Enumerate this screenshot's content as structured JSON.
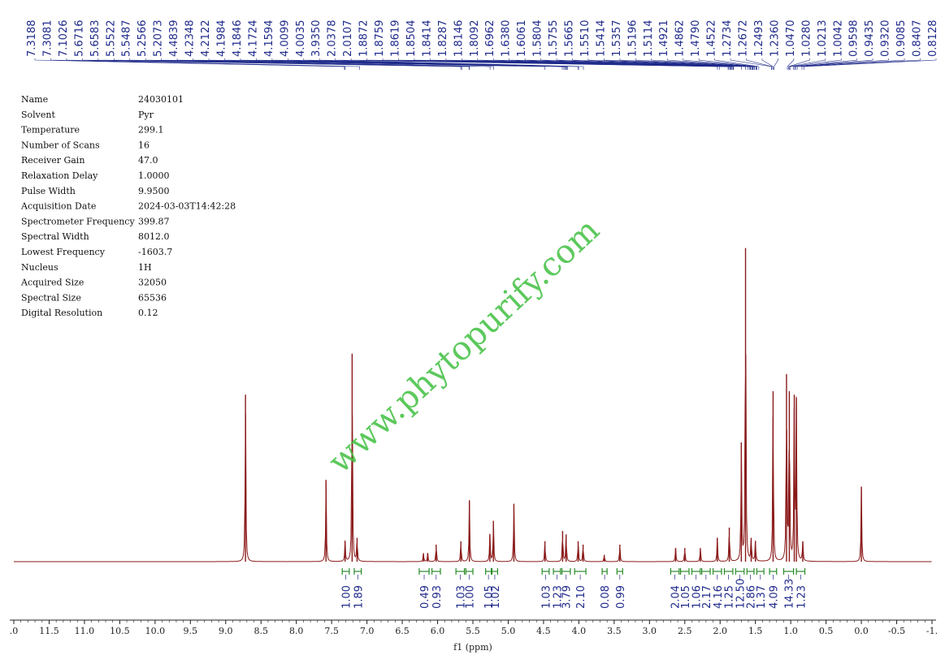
{
  "params": [
    {
      "label": "Name",
      "value": "24030101"
    },
    {
      "label": "Solvent",
      "value": "Pyr"
    },
    {
      "label": "Temperature",
      "value": "299.1"
    },
    {
      "label": "Number of Scans",
      "value": "16"
    },
    {
      "label": "Receiver Gain",
      "value": "47.0"
    },
    {
      "label": "Relaxation Delay",
      "value": "1.0000"
    },
    {
      "label": "Pulse Width",
      "value": "9.9500"
    },
    {
      "label": "Acquisition Date",
      "value": "2024-03-03T14:42:28"
    },
    {
      "label": "Spectrometer Frequency",
      "value": "399.87"
    },
    {
      "label": "Spectral Width",
      "value": "8012.0"
    },
    {
      "label": "Lowest Frequency",
      "value": "-1603.7"
    },
    {
      "label": "Nucleus",
      "value": "1H"
    },
    {
      "label": "Acquired Size",
      "value": "32050"
    },
    {
      "label": "Spectral Size",
      "value": "65536"
    },
    {
      "label": "Digital Resolution",
      "value": "0.12"
    }
  ],
  "watermark": "www.phytopurify.com",
  "colors": {
    "spectrum": "#8b1a1a",
    "peaks": "#1a1a9c",
    "labels": "#1f2a8a",
    "integral": "#2a8a2a",
    "watermark": "#3fbf3f"
  },
  "chart_data": {
    "type": "line",
    "xlabel": "f1 (ppm)",
    "xlim": [
      12.0,
      -1.0
    ],
    "x_reversed": true,
    "x_ticks": [
      ".0",
      "11.5",
      "11.0",
      "10.5",
      "10.0",
      "9.5",
      "9.0",
      "8.5",
      "8.0",
      "7.5",
      "7.0",
      "6.5",
      "6.0",
      "5.5",
      "5.0",
      "4.5",
      "4.0",
      "3.5",
      "3.0",
      "2.5",
      "2.0",
      "1.5",
      "1.0",
      "0.5",
      "0.0",
      "-0.5",
      "-1."
    ],
    "x_tick_values": [
      12.0,
      11.5,
      11.0,
      10.5,
      10.0,
      9.5,
      9.0,
      8.5,
      8.0,
      7.5,
      7.0,
      6.5,
      6.0,
      5.5,
      5.0,
      4.5,
      4.0,
      3.5,
      3.0,
      2.5,
      2.0,
      1.5,
      1.0,
      0.5,
      0.0,
      -0.5,
      -1.0
    ],
    "peak_labels": [
      "7.3188",
      "7.3081",
      "7.1026",
      "5.6716",
      "5.6583",
      "5.5522",
      "5.5487",
      "5.2566",
      "5.2073",
      "4.4839",
      "4.2348",
      "4.2122",
      "4.1984",
      "4.1846",
      "4.1724",
      "4.1594",
      "4.0099",
      "4.0035",
      "3.9350",
      "2.0378",
      "2.0107",
      "1.8872",
      "1.8759",
      "1.8619",
      "1.8504",
      "1.8414",
      "1.8287",
      "1.8146",
      "1.8092",
      "1.6962",
      "1.6380",
      "1.6061",
      "1.5804",
      "1.5755",
      "1.5665",
      "1.5510",
      "1.5414",
      "1.5357",
      "1.5196",
      "1.5114",
      "1.4921",
      "1.4862",
      "1.4790",
      "1.4522",
      "1.2734",
      "1.2672",
      "1.2493",
      "1.2360",
      "1.0470",
      "1.0280",
      "1.0213",
      "1.0042",
      "0.9598",
      "0.9435",
      "0.9320",
      "0.9085",
      "0.8407",
      "0.8128"
    ],
    "peaks": [
      {
        "ppm": 8.72,
        "h": 0.49
      },
      {
        "ppm": 7.58,
        "h": 0.24
      },
      {
        "ppm": 7.31,
        "h": 0.06
      },
      {
        "ppm": 7.21,
        "h": 0.61
      },
      {
        "ppm": 7.14,
        "h": 0.07
      },
      {
        "ppm": 6.2,
        "h": 0.025
      },
      {
        "ppm": 6.14,
        "h": 0.025
      },
      {
        "ppm": 6.02,
        "h": 0.05
      },
      {
        "ppm": 5.67,
        "h": 0.06
      },
      {
        "ppm": 5.55,
        "h": 0.18
      },
      {
        "ppm": 5.26,
        "h": 0.08
      },
      {
        "ppm": 5.21,
        "h": 0.12
      },
      {
        "ppm": 4.92,
        "h": 0.17
      },
      {
        "ppm": 4.48,
        "h": 0.06
      },
      {
        "ppm": 4.23,
        "h": 0.09
      },
      {
        "ppm": 4.18,
        "h": 0.08
      },
      {
        "ppm": 4.01,
        "h": 0.06
      },
      {
        "ppm": 3.94,
        "h": 0.05
      },
      {
        "ppm": 3.64,
        "h": 0.02
      },
      {
        "ppm": 3.42,
        "h": 0.05
      },
      {
        "ppm": 2.63,
        "h": 0.04
      },
      {
        "ppm": 2.5,
        "h": 0.04
      },
      {
        "ppm": 2.28,
        "h": 0.04
      },
      {
        "ppm": 2.04,
        "h": 0.07
      },
      {
        "ppm": 1.87,
        "h": 0.1
      },
      {
        "ppm": 1.7,
        "h": 0.35
      },
      {
        "ppm": 1.64,
        "h": 0.92
      },
      {
        "ppm": 1.56,
        "h": 0.07
      },
      {
        "ppm": 1.5,
        "h": 0.06
      },
      {
        "ppm": 1.25,
        "h": 0.5
      },
      {
        "ppm": 1.06,
        "h": 0.55
      },
      {
        "ppm": 1.02,
        "h": 0.5
      },
      {
        "ppm": 0.95,
        "h": 0.49
      },
      {
        "ppm": 0.92,
        "h": 0.48
      },
      {
        "ppm": 0.83,
        "h": 0.06
      },
      {
        "ppm": 0.0,
        "h": 0.22
      }
    ],
    "integrals": [
      {
        "x1": 7.35,
        "x2": 7.25,
        "value": "1.00"
      },
      {
        "x1": 7.18,
        "x2": 7.08,
        "value": "1.89"
      },
      {
        "x1": 6.26,
        "x2": 6.12,
        "value": "0.49"
      },
      {
        "x1": 6.08,
        "x2": 5.96,
        "value": "0.93"
      },
      {
        "x1": 5.74,
        "x2": 5.62,
        "value": "1.03"
      },
      {
        "x1": 5.6,
        "x2": 5.5,
        "value": "1.00"
      },
      {
        "x1": 5.32,
        "x2": 5.24,
        "value": "1.05"
      },
      {
        "x1": 5.23,
        "x2": 5.15,
        "value": "1.02"
      },
      {
        "x1": 4.52,
        "x2": 4.42,
        "value": "1.03"
      },
      {
        "x1": 4.36,
        "x2": 4.26,
        "value": "1.23"
      },
      {
        "x1": 4.24,
        "x2": 4.12,
        "value": "3.79"
      },
      {
        "x1": 4.06,
        "x2": 3.9,
        "value": "2.10"
      },
      {
        "x1": 3.67,
        "x2": 3.6,
        "value": "0.08"
      },
      {
        "x1": 3.46,
        "x2": 3.38,
        "value": "0.99"
      },
      {
        "x1": 2.7,
        "x2": 2.58,
        "value": "2.04"
      },
      {
        "x1": 2.56,
        "x2": 2.44,
        "value": "1.05"
      },
      {
        "x1": 2.4,
        "x2": 2.28,
        "value": "1.06"
      },
      {
        "x1": 2.26,
        "x2": 2.14,
        "value": "2.17"
      },
      {
        "x1": 2.1,
        "x2": 1.98,
        "value": "4.16"
      },
      {
        "x1": 1.94,
        "x2": 1.82,
        "value": "1.25"
      },
      {
        "x1": 1.78,
        "x2": 1.66,
        "value": "12.50"
      },
      {
        "x1": 1.62,
        "x2": 1.52,
        "value": "2.86"
      },
      {
        "x1": 1.48,
        "x2": 1.38,
        "value": "1.37"
      },
      {
        "x1": 1.3,
        "x2": 1.2,
        "value": "4.09"
      },
      {
        "x1": 1.1,
        "x2": 0.96,
        "value": "14.33"
      },
      {
        "x1": 0.92,
        "x2": 0.8,
        "value": "1.23"
      }
    ]
  }
}
